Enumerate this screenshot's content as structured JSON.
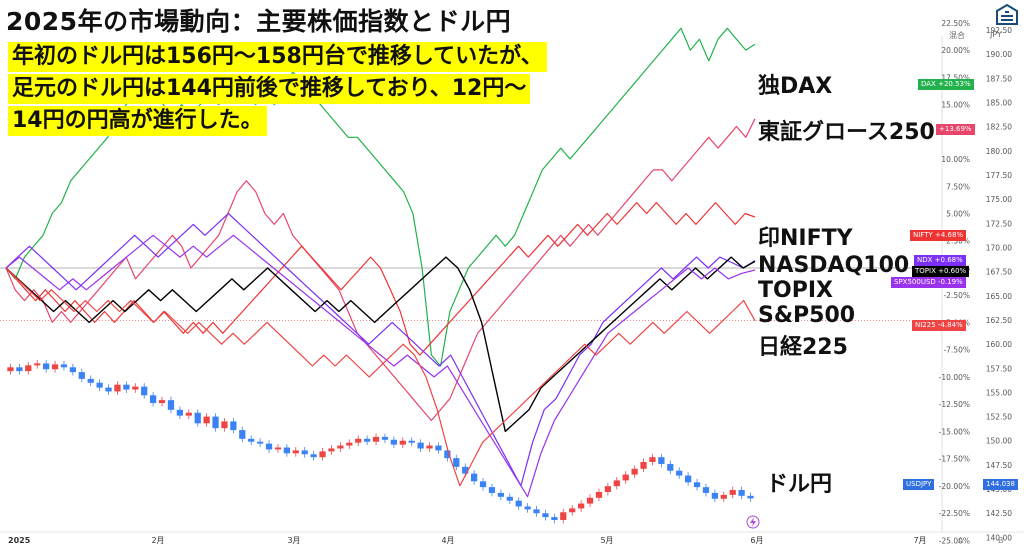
{
  "header": {
    "title": "2025年の市場動向：主要株価指数とドル円",
    "caption_lines": [
      "年初のドル円は156円〜158円台で推移していたが、",
      "足元のドル円は144円前後で推移しており、12円〜",
      "14円の円高が進行した。"
    ],
    "axis_mode_label": "混合",
    "currency_label": "JPY"
  },
  "colors": {
    "dax": "#22b14c",
    "growth": "#e8456b",
    "nifty": "#ee3333",
    "ndx": "#7b2ff7",
    "topix": "#000000",
    "spx": "#9933ee",
    "ni225": "#ee4444",
    "candle_up": "#ee4444",
    "candle_down": "#3b82f6",
    "usdjpy_tag": "#2f6fe0"
  },
  "chart_data": {
    "type": "line",
    "title": "2025年の市場動向：主要株価指数とドル円",
    "x_ticks": [
      "2025",
      "2月",
      "3月",
      "4月",
      "5月",
      "6月",
      "7月"
    ],
    "pct_ticks": [
      "22.50%",
      "20.00%",
      "17.50%",
      "15.00%",
      "12.50%",
      "10.00%",
      "7.50%",
      "5.00%",
      "2.50%",
      "0.00%",
      "-2.50%",
      "-5.00%",
      "-7.50%",
      "-10.00%",
      "-12.50%",
      "-15.00%",
      "-17.50%",
      "-20.00%",
      "-22.50%",
      "-25.00%"
    ],
    "jpy_ticks": [
      "192.50",
      "190.00",
      "187.50",
      "185.00",
      "182.50",
      "180.00",
      "177.50",
      "175.00",
      "172.50",
      "170.00",
      "167.50",
      "165.00",
      "162.50",
      "160.00",
      "157.50",
      "155.00",
      "152.50",
      "150.00",
      "147.50",
      "145.00",
      "142.50",
      "140.00"
    ],
    "pct_range": [
      -25.8,
      24.6
    ],
    "jpy_range": [
      138.8,
      195.6
    ],
    "series": [
      {
        "key": "dax",
        "label": "独DAX",
        "tag": "DAX",
        "tag_value": "+20.53%",
        "values": [
          0,
          -1,
          1,
          2,
          3,
          5,
          6,
          8,
          9,
          10,
          11,
          12,
          14,
          15,
          16,
          17,
          16,
          15,
          14,
          15,
          14,
          15,
          16,
          15,
          16,
          17,
          16,
          15,
          17,
          15,
          16,
          18,
          17,
          16,
          15,
          14,
          13,
          12,
          12,
          11,
          10,
          9,
          8,
          7,
          5,
          0,
          -8,
          -9,
          -4,
          -2,
          0,
          1,
          2,
          3,
          2,
          3,
          5,
          7,
          9,
          10,
          11,
          10,
          11,
          12,
          13,
          14,
          15,
          16,
          17,
          18,
          19,
          20,
          21,
          22,
          20,
          21,
          19,
          21,
          22,
          21,
          20,
          20.53
        ]
      },
      {
        "key": "growth",
        "label": "東証グロース250",
        "tag": "",
        "tag_value": "+13.69%",
        "values": [
          0,
          -2,
          -3,
          -2,
          -3,
          -5,
          -4,
          -5,
          -4,
          -3,
          -2,
          -1,
          0,
          1,
          -1,
          0,
          1,
          2,
          3,
          2,
          0,
          1,
          2,
          3,
          5,
          7,
          8,
          7,
          5,
          4,
          5,
          3,
          2,
          1,
          0,
          -1,
          -2,
          -4,
          -6,
          -7,
          -8,
          -9,
          -10,
          -11,
          -12,
          -13,
          -14,
          -13,
          -12,
          -10,
          -8,
          -6,
          -5,
          -4,
          -3,
          -2,
          -1,
          0,
          1,
          2,
          3,
          2,
          3,
          4,
          3,
          4,
          5,
          6,
          7,
          8,
          9,
          9,
          8,
          9,
          10,
          11,
          12,
          11,
          12,
          13,
          12,
          13.69
        ]
      },
      {
        "key": "nifty",
        "label": "印NIFTY",
        "tag": "NIFTY",
        "tag_value": "+4.68%",
        "values": [
          0,
          -1,
          -2,
          -3,
          -2,
          -3,
          -4,
          -3,
          -4,
          -5,
          -4,
          -5,
          -4,
          -3,
          -4,
          -5,
          -4,
          -5,
          -6,
          -5,
          -6,
          -5,
          -6,
          -5,
          -4,
          -3,
          -2,
          -1,
          0,
          1,
          2,
          1,
          0,
          -1,
          -2,
          -1,
          0,
          1,
          0,
          -2,
          -4,
          -7,
          -8,
          -7,
          -6,
          -5,
          -4,
          -3,
          -2,
          -1,
          0,
          1,
          2,
          1,
          2,
          3,
          2,
          3,
          4,
          3,
          4,
          5,
          4,
          5,
          6,
          5,
          6,
          5,
          4,
          5,
          4,
          5,
          6,
          5,
          4,
          5,
          4.68
        ]
      },
      {
        "key": "ndx",
        "label": "NASDAQ100",
        "tag": "NDX",
        "tag_value": "+0.68%",
        "values": [
          0,
          1,
          2,
          1,
          0,
          -1,
          -2,
          -1,
          0,
          1,
          2,
          3,
          2,
          1,
          2,
          3,
          4,
          3,
          4,
          5,
          4,
          3,
          2,
          1,
          0,
          -1,
          -2,
          -3,
          -4,
          -5,
          -6,
          -7,
          -6,
          -5,
          -6,
          -7,
          -8,
          -9,
          -8,
          -10,
          -12,
          -14,
          -16,
          -18,
          -20,
          -16,
          -13,
          -12,
          -10,
          -8,
          -7,
          -5,
          -4,
          -3,
          -2,
          -1,
          0,
          -1,
          0,
          1,
          0,
          1,
          0.5,
          0,
          0.68
        ]
      },
      {
        "key": "topix",
        "label": "TOPIX",
        "tag": "TOPIX",
        "tag_value": "+0.60%",
        "values": [
          0,
          -1,
          -2,
          -3,
          -4,
          -3,
          -4,
          -5,
          -4,
          -3,
          -4,
          -3,
          -2,
          -3,
          -2,
          -3,
          -4,
          -3,
          -2,
          -1,
          -2,
          -1,
          0,
          -1,
          -2,
          -3,
          -4,
          -3,
          -4,
          -3,
          -4,
          -5,
          -4,
          -3,
          -2,
          -1,
          0,
          1,
          0,
          -2,
          -5,
          -10,
          -15,
          -14,
          -13,
          -11,
          -10,
          -9,
          -8,
          -7,
          -6,
          -5,
          -4,
          -3,
          -2,
          -1,
          -2,
          -1,
          0,
          -1,
          0,
          1,
          0,
          0.6
        ]
      },
      {
        "key": "spx",
        "label": "S&P500",
        "tag": "SPX500USD",
        "tag_value": "-0.19%",
        "values": [
          0,
          1,
          0,
          -1,
          -2,
          -1,
          -2,
          -1,
          0,
          1,
          2,
          3,
          2,
          1,
          2,
          1,
          2,
          3,
          2,
          1,
          0,
          -1,
          -2,
          -3,
          -4,
          -5,
          -6,
          -7,
          -8,
          -9,
          -8,
          -9,
          -10,
          -9,
          -11,
          -13,
          -15,
          -17,
          -19,
          -21,
          -17,
          -14,
          -12,
          -10,
          -8,
          -6,
          -5,
          -4,
          -3,
          -2,
          -1,
          0,
          -1,
          0,
          -1,
          -0.5,
          -0.19
        ]
      },
      {
        "key": "ni225",
        "label": "日経225",
        "tag": "NI225",
        "tag_value": "-4.84%",
        "values": [
          0,
          -1,
          -2,
          -3,
          -2,
          -3,
          -4,
          -3,
          -4,
          -3,
          -4,
          -3,
          -4,
          -5,
          -4,
          -5,
          -6,
          -5,
          -6,
          -7,
          -6,
          -7,
          -6,
          -5,
          -6,
          -7,
          -8,
          -9,
          -8,
          -9,
          -8,
          -9,
          -10,
          -9,
          -8,
          -7,
          -8,
          -10,
          -13,
          -17,
          -20,
          -18,
          -16,
          -15,
          -14,
          -13,
          -12,
          -11,
          -10,
          -9,
          -8,
          -7,
          -8,
          -7,
          -6,
          -7,
          -6,
          -5,
          -6,
          -5,
          -4,
          -5,
          -6,
          -5,
          -4,
          -3,
          -4.84
        ]
      }
    ],
    "usdjpy": {
      "label": "ドル円",
      "tag": "USDJPY",
      "tag_value": "144.038",
      "type": "candlestick",
      "closes": [
        157.6,
        157.2,
        157.8,
        158.0,
        157.4,
        157.9,
        157.6,
        157.1,
        156.4,
        156.0,
        155.5,
        155.1,
        155.8,
        155.3,
        155.6,
        154.7,
        153.9,
        154.2,
        153.2,
        152.6,
        152.9,
        151.8,
        152.5,
        151.3,
        152.0,
        151.1,
        150.2,
        149.9,
        149.7,
        149.1,
        149.3,
        148.7,
        149.0,
        148.6,
        148.3,
        148.9,
        149.2,
        149.5,
        149.8,
        150.2,
        149.9,
        150.4,
        150.1,
        149.6,
        150.0,
        149.8,
        149.2,
        149.5,
        149.0,
        148.2,
        147.3,
        146.6,
        145.8,
        145.2,
        144.6,
        144.2,
        143.8,
        143.2,
        142.9,
        142.5,
        142.1,
        141.8,
        142.6,
        143.0,
        143.5,
        144.1,
        144.7,
        145.3,
        145.9,
        146.5,
        147.1,
        147.8,
        148.3,
        147.6,
        146.9,
        146.4,
        145.7,
        145.2,
        144.6,
        144.0,
        144.4,
        144.9,
        144.3,
        144.038
      ],
      "opens": [
        157.2,
        157.6,
        157.2,
        157.8,
        158.0,
        157.4,
        157.9,
        157.6,
        157.1,
        156.4,
        156.0,
        155.5,
        155.1,
        155.8,
        155.3,
        155.6,
        154.7,
        153.9,
        154.2,
        153.2,
        152.6,
        152.9,
        151.8,
        152.5,
        151.3,
        152.0,
        151.1,
        150.2,
        149.9,
        149.7,
        149.1,
        149.3,
        148.7,
        149.0,
        148.6,
        148.3,
        148.9,
        149.2,
        149.5,
        149.8,
        150.2,
        149.9,
        150.4,
        150.1,
        149.6,
        150.0,
        149.8,
        149.2,
        149.5,
        149.0,
        148.2,
        147.3,
        146.6,
        145.8,
        145.2,
        144.6,
        144.2,
        143.8,
        143.2,
        142.9,
        142.5,
        142.1,
        141.8,
        142.6,
        143.0,
        143.5,
        144.1,
        144.7,
        145.3,
        145.9,
        146.5,
        147.1,
        147.8,
        148.3,
        147.6,
        146.9,
        146.4,
        145.7,
        145.2,
        144.6,
        144.0,
        144.4,
        144.9,
        144.3
      ]
    }
  }
}
